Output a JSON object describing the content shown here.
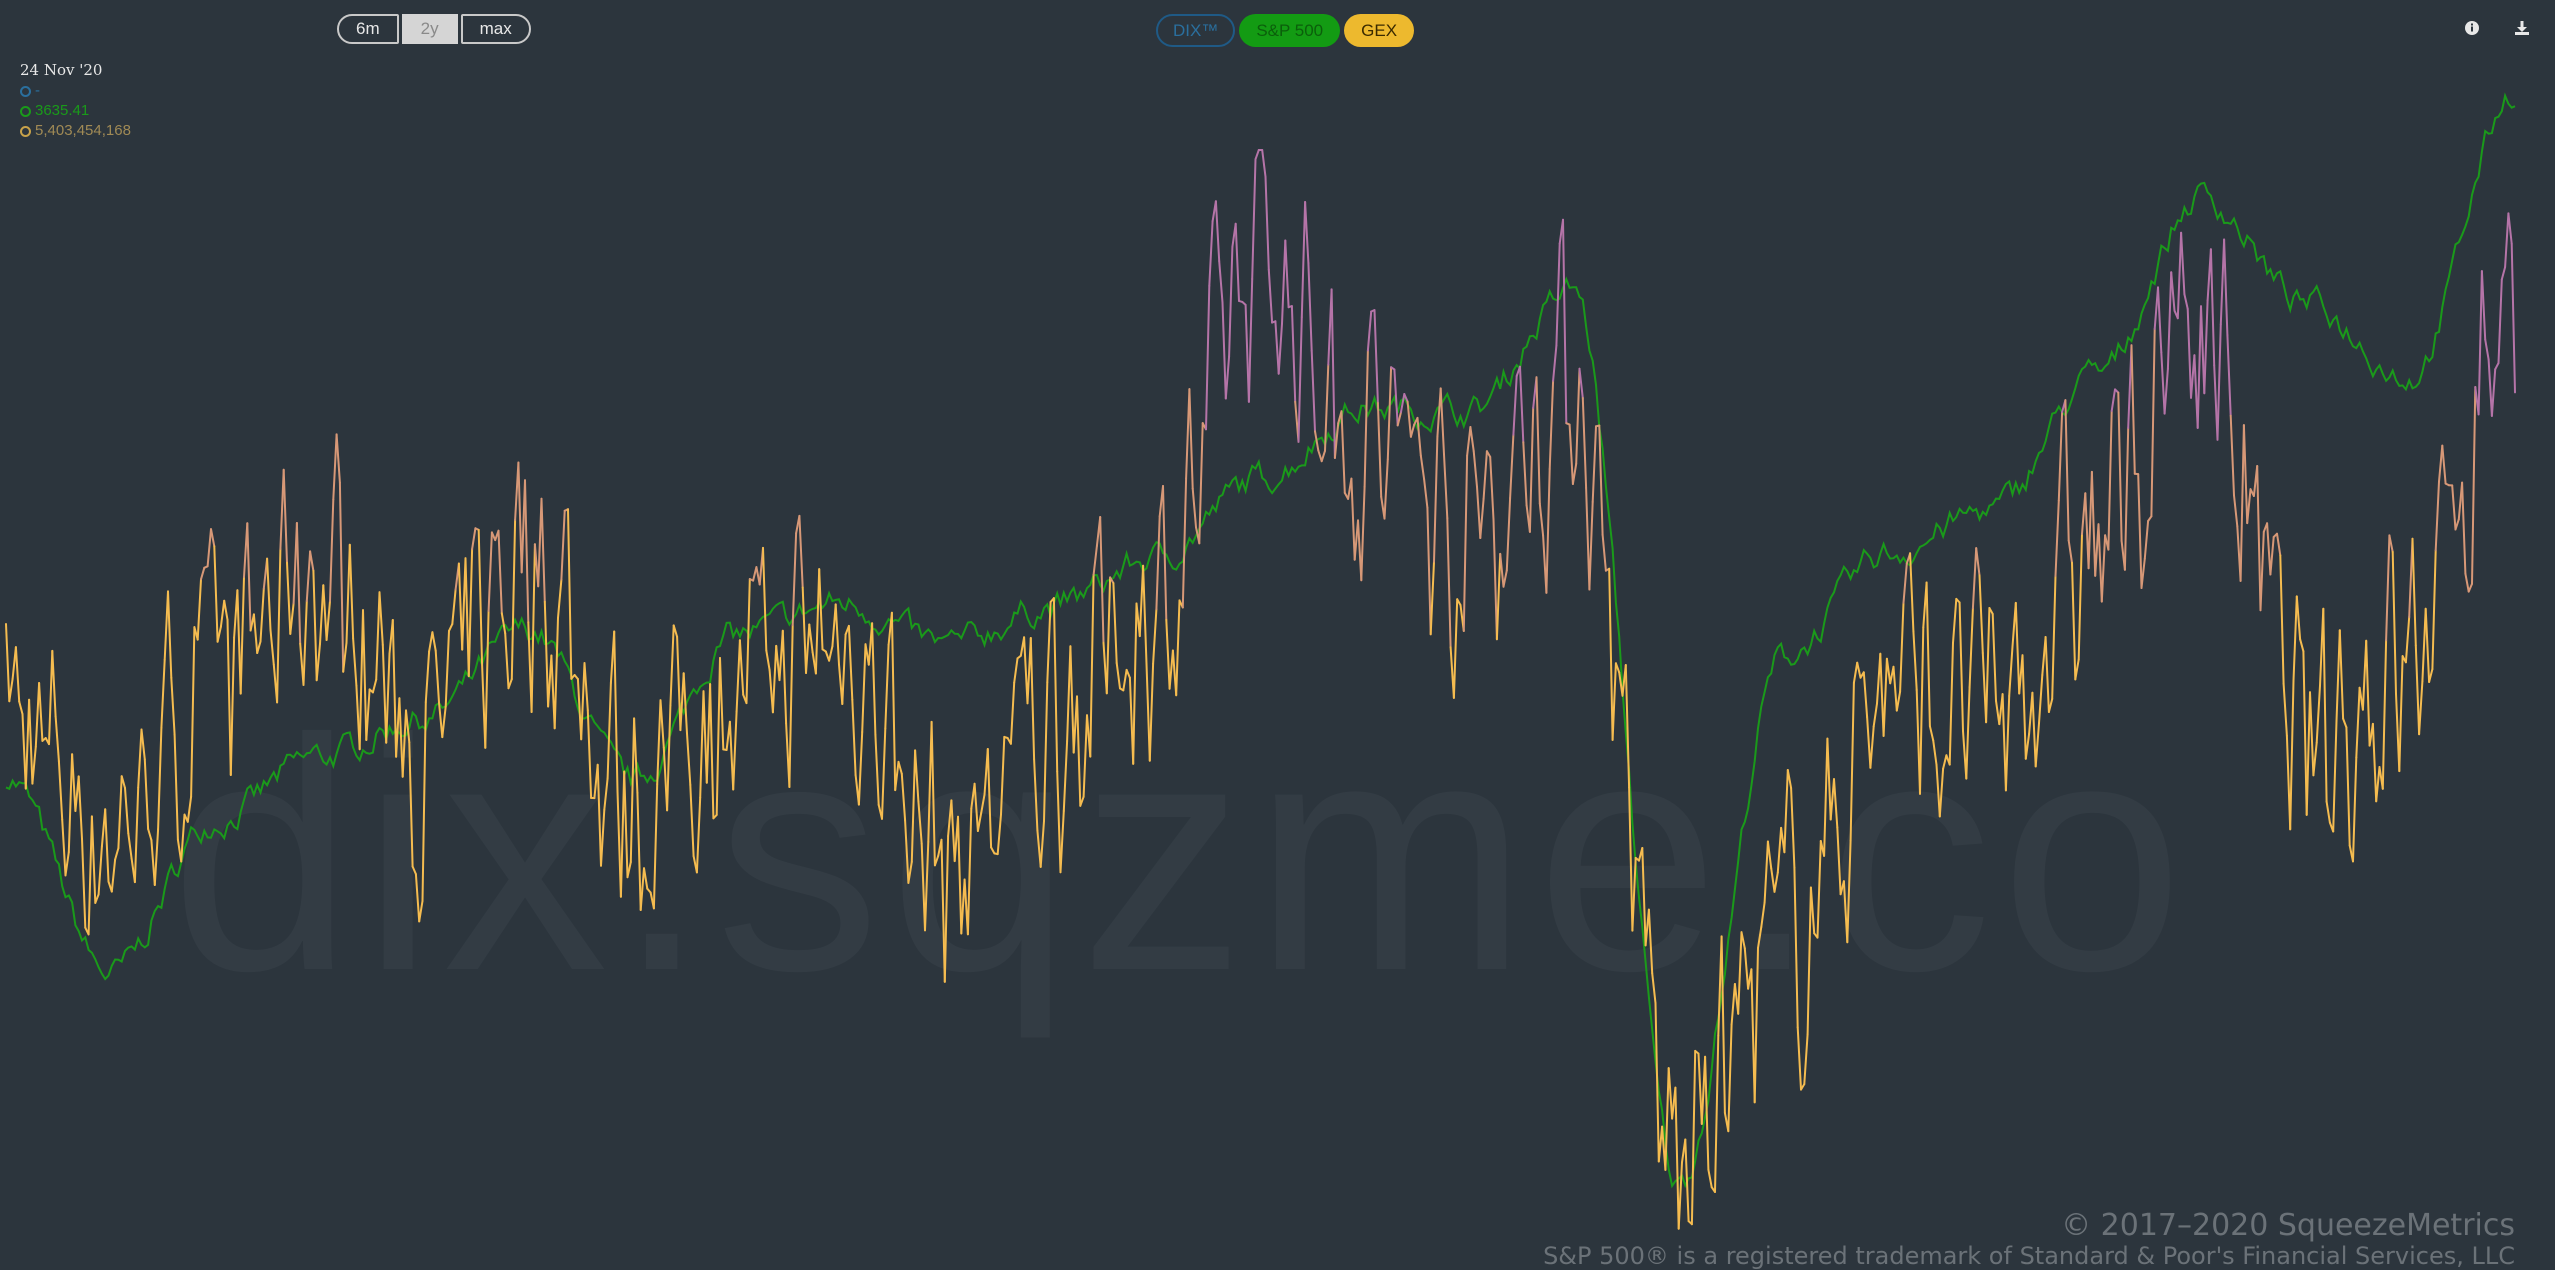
{
  "toolbar": {
    "range_buttons": [
      "6m",
      "2y",
      "max"
    ],
    "active_range": "2y",
    "series_buttons": [
      {
        "label": "DIX™",
        "state": "off"
      },
      {
        "label": "S&P 500",
        "state": "on"
      },
      {
        "label": "GEX",
        "state": "on"
      }
    ]
  },
  "icons": {
    "info": "info-icon",
    "download": "download-icon"
  },
  "tooltip": {
    "date": "24 Nov '20",
    "dix_value": "-",
    "spx_value": "3635.41",
    "gex_value": "5,403,454,168"
  },
  "watermark": "dix.sqzme.co",
  "credits": {
    "copyright": "© 2017–2020 SqueezeMetrics",
    "trademark": "S&P 500® is a registered trademark of Standard & Poor's Financial Services, LLC"
  },
  "colors": {
    "background": "#2c353d",
    "dix": "#2a6f9e",
    "spx": "#1a9a1a",
    "gex_low": "#f5bc50",
    "gex_mid": "#d79877",
    "gex_high": "#b574a8"
  },
  "chart_data": {
    "type": "line",
    "title": "",
    "x_range": [
      "Nov 2018",
      "24 Nov 2020"
    ],
    "series": [
      {
        "name": "S&P 500",
        "x": [
          "2018-11",
          "2018-12",
          "2019-01",
          "2019-02",
          "2019-03",
          "2019-04",
          "2019-05",
          "2019-06",
          "2019-07",
          "2019-08",
          "2019-09",
          "2019-10",
          "2019-11",
          "2019-12",
          "2020-01",
          "2020-02",
          "2020-03",
          "2020-04",
          "2020-05",
          "2020-06",
          "2020-07",
          "2020-08",
          "2020-09",
          "2020-10",
          "2020-11"
        ],
        "values": [
          2760,
          2506,
          2704,
          2784,
          2834,
          2946,
          2752,
          2941,
          2980,
          2926,
          2976,
          3037,
          3140,
          3230,
          3225,
          3380,
          2237,
          2912,
          3044,
          3100,
          3271,
          3500,
          3363,
          3270,
          3635
        ]
      },
      {
        "name": "GEX",
        "x": [
          "2018-11",
          "2018-12",
          "2019-01",
          "2019-02",
          "2019-03",
          "2019-04",
          "2019-05",
          "2019-06",
          "2019-07",
          "2019-08",
          "2019-09",
          "2019-10",
          "2019-11",
          "2019-12",
          "2020-01",
          "2020-02",
          "2020-03",
          "2020-04",
          "2020-05",
          "2020-06",
          "2020-07",
          "2020-08",
          "2020-09",
          "2020-10",
          "2020-11"
        ],
        "values": [
          1.5,
          0.5,
          1.8,
          2.8,
          1.2,
          3.0,
          0.8,
          1.8,
          2.2,
          0.2,
          1.5,
          2.5,
          5.5,
          4.0,
          3.2,
          4.5,
          -2.5,
          -0.5,
          1.8,
          1.5,
          3.0,
          5.0,
          1.2,
          2.0,
          5.4
        ]
      }
    ],
    "y_axis_visible": false,
    "grid": false,
    "legend": "top-left"
  }
}
